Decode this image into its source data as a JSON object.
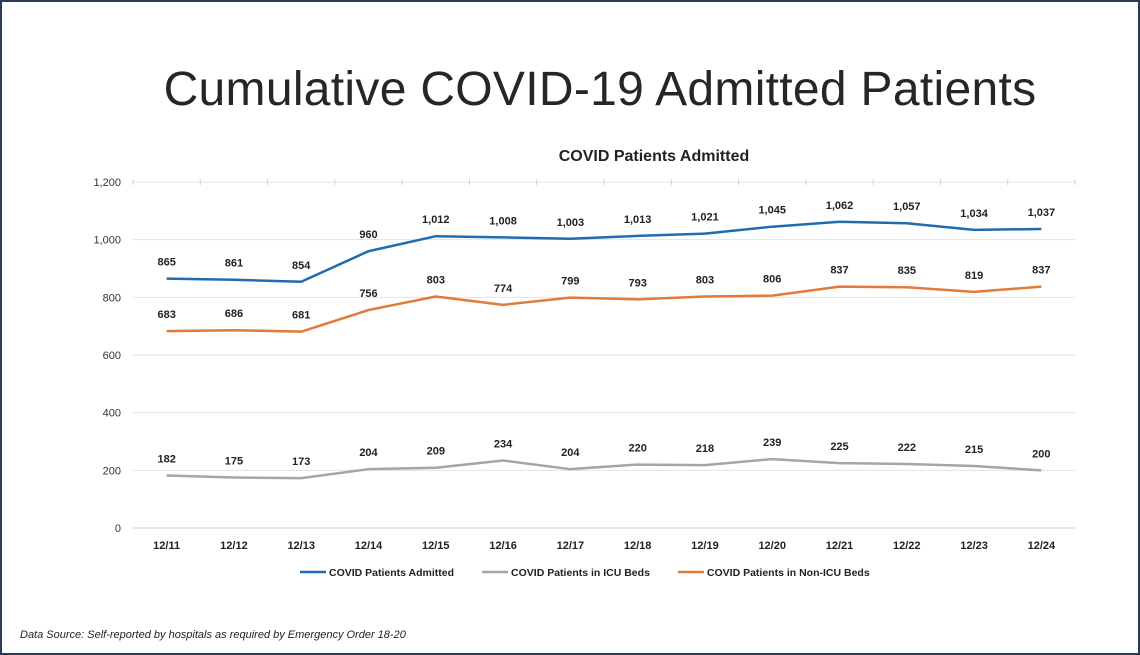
{
  "slide_title": "Cumulative COVID-19 Admitted Patients",
  "footer": "Data Source: Self-reported by hospitals as required by Emergency Order 18-20",
  "chart_data": {
    "type": "line",
    "title": "COVID Patients Admitted",
    "xlabel": "",
    "ylabel": "",
    "ylim": [
      0,
      1200
    ],
    "yticks": [
      0,
      200,
      400,
      600,
      800,
      1000,
      1200
    ],
    "ytick_labels": [
      "0",
      "200",
      "400",
      "600",
      "800",
      "1,000",
      "1,200"
    ],
    "grid": true,
    "legend_placement": "bottom",
    "categories": [
      "12/11",
      "12/12",
      "12/13",
      "12/14",
      "12/15",
      "12/16",
      "12/17",
      "12/18",
      "12/19",
      "12/20",
      "12/21",
      "12/22",
      "12/23",
      "12/24"
    ],
    "series": [
      {
        "name": "COVID Patients Admitted",
        "color": "#1f6db0",
        "values": [
          865,
          861,
          854,
          960,
          1012,
          1008,
          1003,
          1013,
          1021,
          1045,
          1062,
          1057,
          1034,
          1037
        ],
        "labels": [
          "865",
          "861",
          "854",
          "960",
          "1,012",
          "1,008",
          "1,003",
          "1,013",
          "1,021",
          "1,045",
          "1,062",
          "1,057",
          "1,034",
          "1,037"
        ]
      },
      {
        "name": "COVID Patients in ICU Beds",
        "color": "#a5a5a5",
        "values": [
          182,
          175,
          173,
          204,
          209,
          234,
          204,
          220,
          218,
          239,
          225,
          222,
          215,
          200
        ],
        "labels": [
          "182",
          "175",
          "173",
          "204",
          "209",
          "234",
          "204",
          "220",
          "218",
          "239",
          "225",
          "222",
          "215",
          "200"
        ]
      },
      {
        "name": "COVID Patients in Non-ICU Beds",
        "color": "#e07b39",
        "values": [
          683,
          686,
          681,
          756,
          803,
          774,
          799,
          793,
          803,
          806,
          837,
          835,
          819,
          837
        ],
        "labels": [
          "683",
          "686",
          "681",
          "756",
          "803",
          "774",
          "799",
          "793",
          "803",
          "806",
          "837",
          "835",
          "819",
          "837"
        ]
      }
    ]
  }
}
